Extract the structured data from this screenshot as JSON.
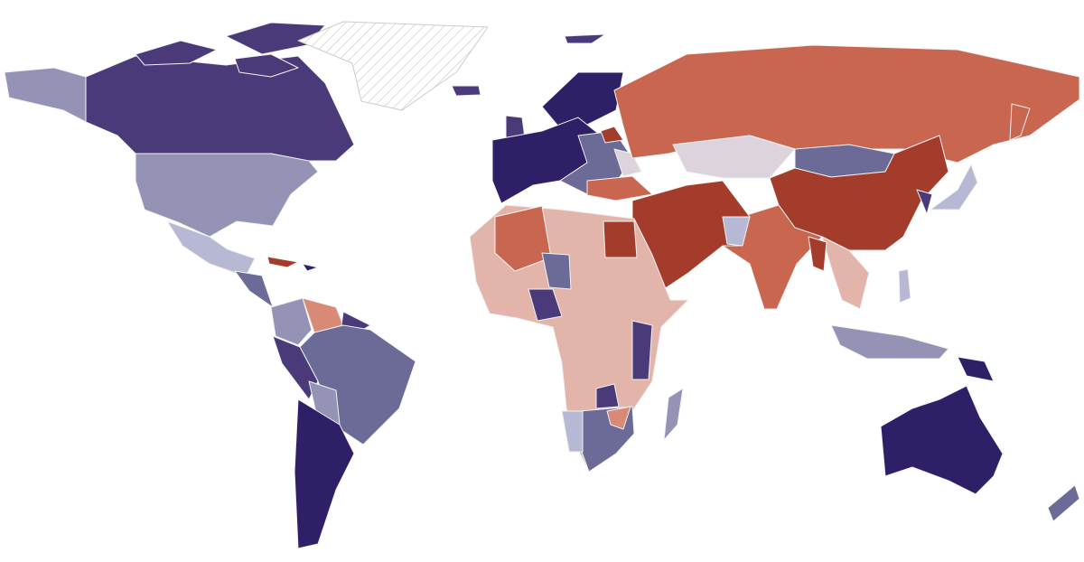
{
  "map": {
    "colors": [
      "#2e1f66",
      "#4a3a7a",
      "#6c6a96",
      "#9593b5",
      "#b7b8d4",
      "#dcd3dc",
      "#e3b5aa",
      "#d98a76",
      "#c8664f",
      "#a33c2a"
    ]
  }
}
